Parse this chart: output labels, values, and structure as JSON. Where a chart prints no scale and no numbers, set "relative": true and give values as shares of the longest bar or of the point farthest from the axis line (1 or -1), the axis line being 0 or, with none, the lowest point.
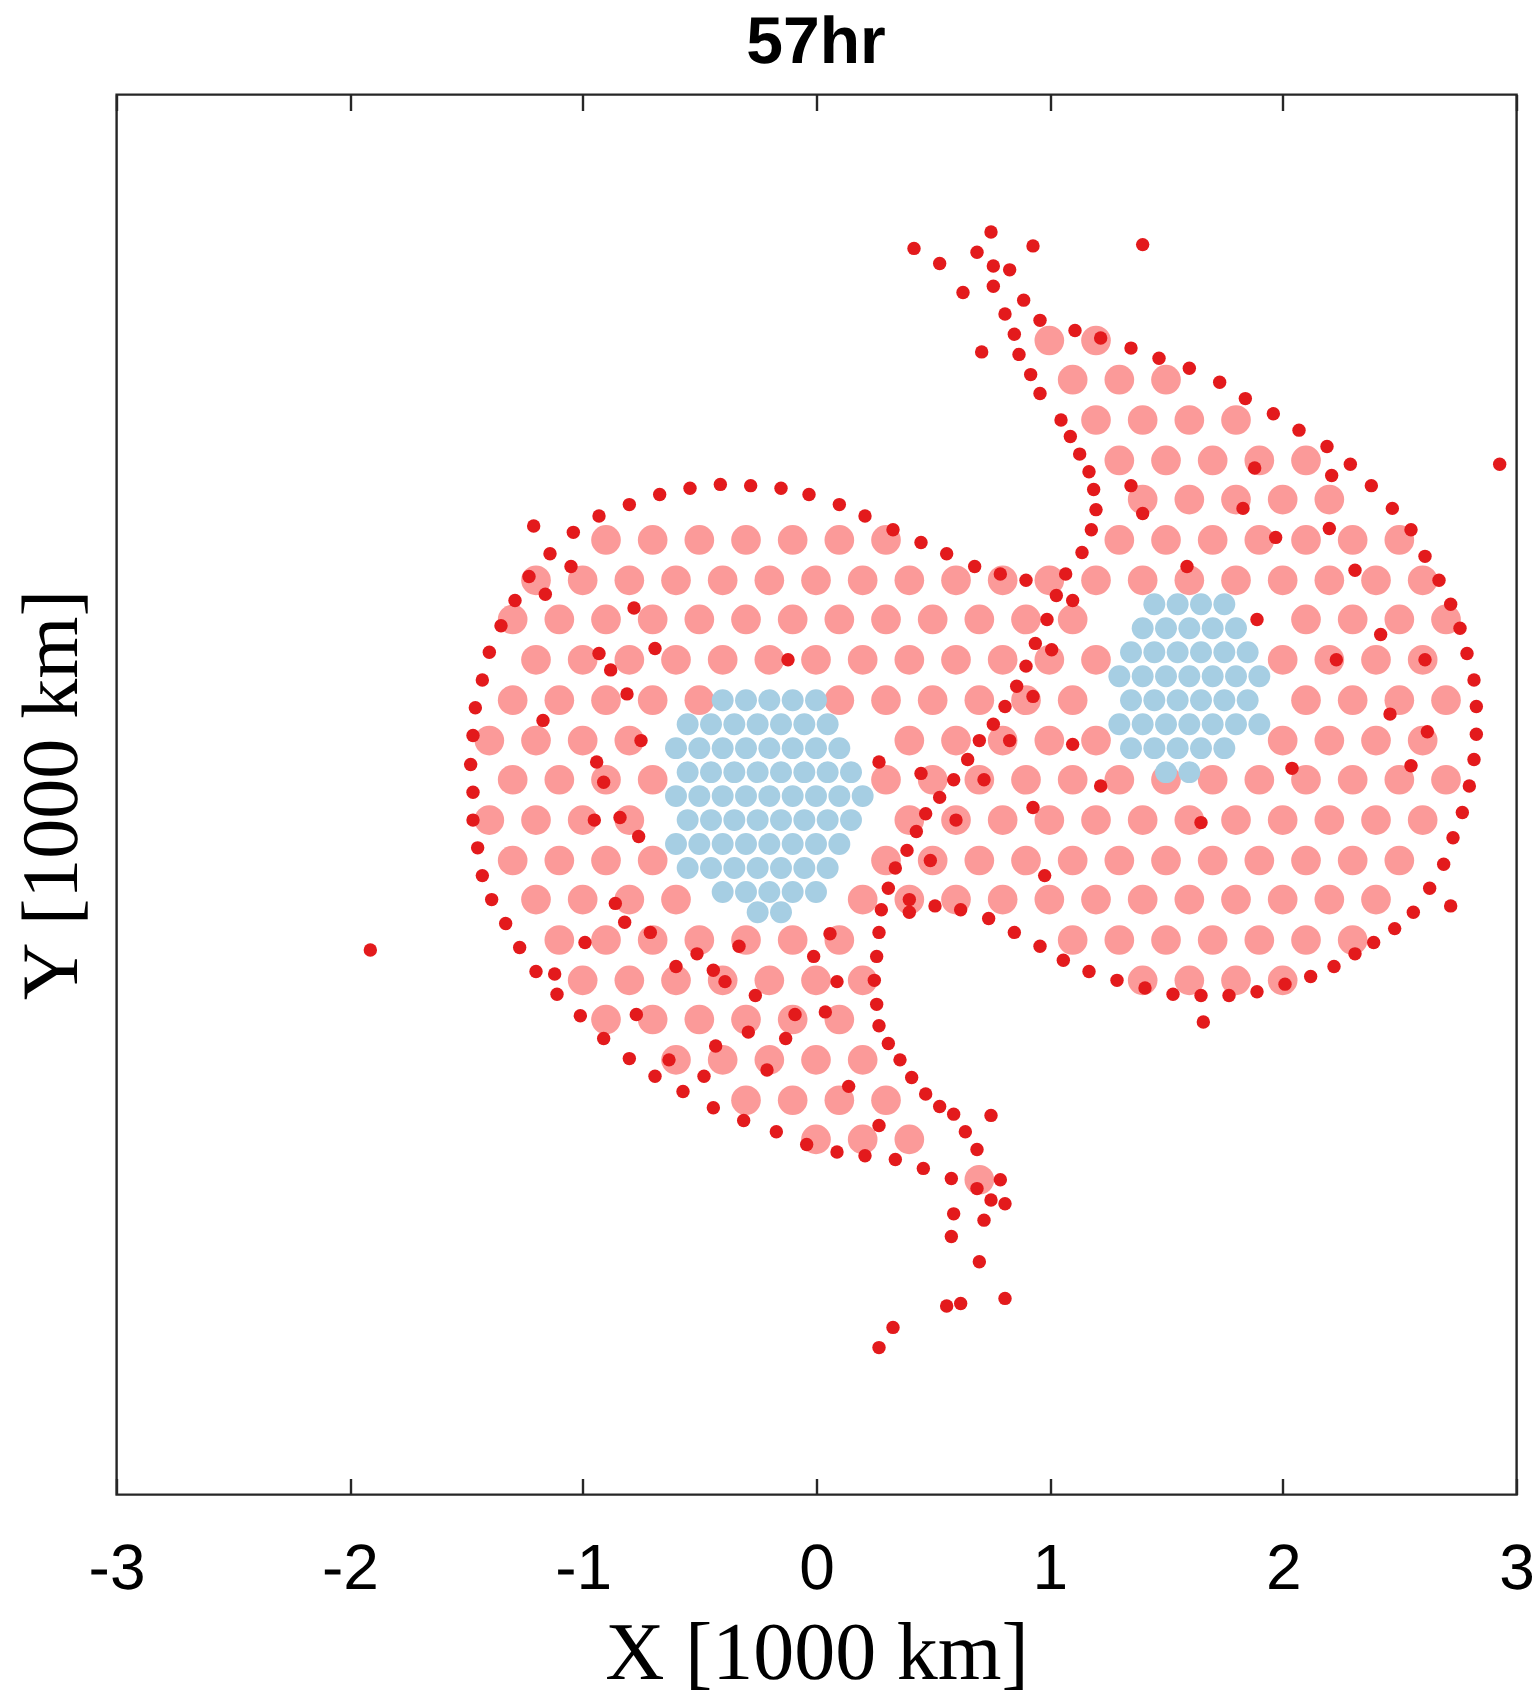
{
  "chart_data": {
    "type": "scatter",
    "title": "57hr",
    "xlabel": "X [1000 km]",
    "ylabel": "Y [1000 km]",
    "xlim": [
      -3,
      3
    ],
    "xticks": [
      -3,
      -2,
      -1,
      0,
      1,
      2,
      3
    ],
    "relative": true,
    "grid": false,
    "tick_labels": "x",
    "marker": "circle",
    "series": [
      {
        "color": "#fb9a99",
        "x": [
          1.0,
          1.2,
          1.1,
          1.3,
          1.5,
          1.2,
          1.4,
          1.6,
          1.8,
          1.3,
          1.5,
          1.7,
          1.9,
          2.1,
          1.4,
          1.6,
          1.8,
          2.0,
          2.2,
          -0.9,
          -0.7,
          -0.5,
          -0.3,
          -0.1,
          0.1,
          0.3,
          1.3,
          1.5,
          1.7,
          1.9,
          2.1,
          2.3,
          2.5,
          -1.2,
          -1.0,
          -0.8,
          -0.6,
          -0.4,
          -0.2,
          0.0,
          0.2,
          0.4,
          0.6,
          0.8,
          1.0,
          1.2,
          1.4,
          1.6,
          1.8,
          2.0,
          2.2,
          2.4,
          2.6,
          -1.3,
          -1.1,
          -0.9,
          -0.7,
          -0.5,
          -0.3,
          -0.1,
          0.1,
          0.3,
          0.5,
          0.7,
          0.9,
          1.1,
          2.1,
          2.3,
          2.5,
          2.7,
          -1.2,
          -1.0,
          -0.8,
          -0.6,
          -0.4,
          -0.2,
          0.0,
          0.2,
          0.4,
          0.6,
          0.8,
          1.0,
          1.2,
          2.0,
          2.2,
          2.4,
          2.6,
          -1.3,
          -1.1,
          -0.9,
          -0.7,
          -0.5,
          0.1,
          0.3,
          0.5,
          0.7,
          0.9,
          1.1,
          2.1,
          2.3,
          2.5,
          2.7,
          -1.4,
          -1.2,
          -1.0,
          -0.8,
          0.4,
          0.6,
          0.8,
          1.0,
          1.2,
          2.0,
          2.2,
          2.4,
          2.6,
          -1.3,
          -1.1,
          -0.9,
          -0.7,
          0.3,
          0.5,
          0.7,
          0.9,
          1.1,
          1.3,
          1.5,
          1.7,
          1.9,
          2.1,
          2.3,
          2.5,
          2.7,
          -1.4,
          -1.2,
          -1.0,
          -0.8,
          0.4,
          0.6,
          0.8,
          1.0,
          1.2,
          1.4,
          1.6,
          1.8,
          2.0,
          2.2,
          2.4,
          2.6,
          -1.3,
          -1.1,
          -0.9,
          -0.7,
          0.3,
          0.5,
          0.7,
          0.9,
          1.1,
          1.3,
          1.5,
          1.7,
          1.9,
          2.1,
          2.3,
          2.5,
          -1.2,
          -1.0,
          -0.8,
          -0.6,
          0.2,
          0.4,
          0.6,
          0.8,
          1.0,
          1.2,
          1.4,
          1.6,
          1.8,
          2.0,
          2.2,
          2.4,
          -1.1,
          -0.9,
          -0.7,
          -0.5,
          -0.3,
          -0.1,
          0.1,
          1.1,
          1.3,
          1.5,
          1.7,
          1.9,
          2.1,
          2.3,
          -1.0,
          -0.8,
          -0.6,
          -0.4,
          -0.2,
          0.0,
          0.2,
          1.4,
          1.6,
          1.8,
          2.0,
          -0.9,
          -0.7,
          -0.5,
          -0.3,
          -0.1,
          0.1,
          -0.6,
          -0.4,
          -0.2,
          0.0,
          0.2,
          -0.3,
          -0.1,
          0.1,
          0.3,
          0.0,
          0.2,
          0.4,
          0.7
        ],
        "values": [
          0.914,
          0.914,
          0.883,
          0.883,
          0.883,
          0.851,
          0.851,
          0.851,
          0.851,
          0.819,
          0.819,
          0.819,
          0.819,
          0.819,
          0.788,
          0.788,
          0.788,
          0.788,
          0.788,
          0.756,
          0.756,
          0.756,
          0.756,
          0.756,
          0.756,
          0.756,
          0.756,
          0.756,
          0.756,
          0.756,
          0.756,
          0.756,
          0.756,
          0.724,
          0.724,
          0.724,
          0.724,
          0.724,
          0.724,
          0.724,
          0.724,
          0.724,
          0.724,
          0.724,
          0.724,
          0.724,
          0.724,
          0.724,
          0.724,
          0.724,
          0.724,
          0.724,
          0.724,
          0.693,
          0.693,
          0.693,
          0.693,
          0.693,
          0.693,
          0.693,
          0.693,
          0.693,
          0.693,
          0.693,
          0.693,
          0.693,
          0.693,
          0.693,
          0.693,
          0.693,
          0.661,
          0.661,
          0.661,
          0.661,
          0.661,
          0.661,
          0.661,
          0.661,
          0.661,
          0.661,
          0.661,
          0.661,
          0.661,
          0.661,
          0.661,
          0.661,
          0.661,
          0.629,
          0.629,
          0.629,
          0.629,
          0.629,
          0.629,
          0.629,
          0.629,
          0.629,
          0.629,
          0.629,
          0.629,
          0.629,
          0.629,
          0.629,
          0.597,
          0.597,
          0.597,
          0.597,
          0.597,
          0.597,
          0.597,
          0.597,
          0.597,
          0.597,
          0.597,
          0.597,
          0.597,
          0.566,
          0.566,
          0.566,
          0.566,
          0.566,
          0.566,
          0.566,
          0.566,
          0.566,
          0.566,
          0.566,
          0.566,
          0.566,
          0.566,
          0.566,
          0.566,
          0.566,
          0.534,
          0.534,
          0.534,
          0.534,
          0.534,
          0.534,
          0.534,
          0.534,
          0.534,
          0.534,
          0.534,
          0.534,
          0.534,
          0.534,
          0.534,
          0.534,
          0.502,
          0.502,
          0.502,
          0.502,
          0.502,
          0.502,
          0.502,
          0.502,
          0.502,
          0.502,
          0.502,
          0.502,
          0.502,
          0.502,
          0.502,
          0.502,
          0.471,
          0.471,
          0.471,
          0.471,
          0.471,
          0.471,
          0.471,
          0.471,
          0.471,
          0.471,
          0.471,
          0.471,
          0.471,
          0.471,
          0.471,
          0.471,
          0.439,
          0.439,
          0.439,
          0.439,
          0.439,
          0.439,
          0.439,
          0.439,
          0.439,
          0.439,
          0.439,
          0.439,
          0.439,
          0.439,
          0.407,
          0.407,
          0.407,
          0.407,
          0.407,
          0.407,
          0.407,
          0.407,
          0.407,
          0.407,
          0.407,
          0.376,
          0.376,
          0.376,
          0.376,
          0.376,
          0.376,
          0.344,
          0.344,
          0.344,
          0.344,
          0.344,
          0.312,
          0.312,
          0.312,
          0.312,
          0.281,
          0.281,
          0.281,
          0.249
        ]
      },
      {
        "color": "#a6cee3",
        "x": [
          -0.4,
          -0.3,
          -0.2,
          -0.1,
          0.0,
          -0.55,
          -0.45,
          -0.35,
          -0.25,
          -0.15,
          -0.05,
          0.05,
          -0.6,
          -0.5,
          -0.4,
          -0.3,
          -0.2,
          -0.1,
          0.0,
          0.1,
          -0.55,
          -0.45,
          -0.35,
          -0.25,
          -0.15,
          -0.05,
          0.05,
          0.15,
          -0.6,
          -0.5,
          -0.4,
          -0.3,
          -0.2,
          -0.1,
          0.0,
          0.1,
          0.2,
          -0.55,
          -0.45,
          -0.35,
          -0.25,
          -0.15,
          -0.05,
          0.05,
          0.15,
          -0.6,
          -0.5,
          -0.4,
          -0.3,
          -0.2,
          -0.1,
          0.0,
          0.1,
          -0.55,
          -0.45,
          -0.35,
          -0.25,
          -0.15,
          -0.05,
          0.05,
          -0.4,
          -0.3,
          -0.2,
          -0.1,
          0.0,
          -0.25,
          -0.15,
          1.45,
          1.55,
          1.65,
          1.75,
          1.4,
          1.5,
          1.6,
          1.7,
          1.8,
          1.35,
          1.45,
          1.55,
          1.65,
          1.75,
          1.85,
          1.3,
          1.4,
          1.5,
          1.6,
          1.7,
          1.8,
          1.9,
          1.35,
          1.45,
          1.55,
          1.65,
          1.75,
          1.85,
          1.3,
          1.4,
          1.5,
          1.6,
          1.7,
          1.8,
          1.9,
          1.35,
          1.45,
          1.55,
          1.65,
          1.75,
          1.5,
          1.6
        ],
        "values": [
          0.629,
          0.629,
          0.629,
          0.629,
          0.629,
          0.61,
          0.61,
          0.61,
          0.61,
          0.61,
          0.61,
          0.61,
          0.591,
          0.591,
          0.591,
          0.591,
          0.591,
          0.591,
          0.591,
          0.591,
          0.572,
          0.572,
          0.572,
          0.572,
          0.572,
          0.572,
          0.572,
          0.572,
          0.553,
          0.553,
          0.553,
          0.553,
          0.553,
          0.553,
          0.553,
          0.553,
          0.553,
          0.534,
          0.534,
          0.534,
          0.534,
          0.534,
          0.534,
          0.534,
          0.534,
          0.515,
          0.515,
          0.515,
          0.515,
          0.515,
          0.515,
          0.515,
          0.515,
          0.496,
          0.496,
          0.496,
          0.496,
          0.496,
          0.496,
          0.496,
          0.477,
          0.477,
          0.477,
          0.477,
          0.477,
          0.461,
          0.461,
          0.705,
          0.705,
          0.705,
          0.705,
          0.686,
          0.686,
          0.686,
          0.686,
          0.686,
          0.667,
          0.667,
          0.667,
          0.667,
          0.667,
          0.667,
          0.648,
          0.648,
          0.648,
          0.648,
          0.648,
          0.648,
          0.648,
          0.629,
          0.629,
          0.629,
          0.629,
          0.629,
          0.629,
          0.61,
          0.61,
          0.61,
          0.61,
          0.61,
          0.61,
          0.61,
          0.591,
          0.591,
          0.591,
          0.591,
          0.591,
          0.572,
          0.572
        ]
      },
      {
        "color": "#e31a1c",
        "x": [
          0.9,
          0.79,
          0.68,
          0.56,
          0.45,
          0.33,
          0.21,
          0.1,
          -0.03,
          -0.15,
          -0.28,
          -0.41,
          -0.54,
          -0.67,
          -0.8,
          -0.93,
          -1.04,
          -1.14,
          -1.23,
          -1.29,
          -1.35,
          -1.4,
          -1.43,
          -1.46,
          -1.47,
          -1.48,
          -1.47,
          -1.47,
          -1.45,
          -1.43,
          -1.39,
          -1.33,
          -1.27,
          -1.2,
          -1.11,
          -1.01,
          -0.91,
          -0.8,
          -0.69,
          -0.57,
          -0.44,
          -0.31,
          -0.17,
          -0.04,
          0.09,
          0.21,
          0.34,
          0.46,
          0.58,
          0.69,
          0.75,
          0.79,
          0.81,
          0.72,
          0.59,
          0.58,
          0.7,
          0.81,
          0.62,
          0.56,
          0.33,
          0.27,
          0.75,
          -1.91,
          0.75,
          0.69,
          0.76,
          0.76,
          0.81,
          0.85,
          0.87,
          0.92,
          0.96,
          1.05,
          1.09,
          1.13,
          1.17,
          1.19,
          1.2,
          1.18,
          1.14,
          1.07,
          1.03,
          0.99,
          0.94,
          0.9,
          0.86,
          0.81,
          0.76,
          0.7,
          0.65,
          0.59,
          0.53,
          0.47,
          0.43,
          0.39,
          0.34,
          0.31,
          0.28,
          0.27,
          0.26,
          0.25,
          0.26,
          0.27,
          0.31,
          0.36,
          0.41,
          0.47,
          0.53,
          0.59,
          0.64,
          0.69,
          1.1,
          1.01,
          0.93,
          0.83,
          0.72,
          0.6,
          0.49,
          0.4,
          0.83,
          0.89,
          0.96,
          1.11,
          1.22,
          1.35,
          1.47,
          1.6,
          1.73,
          1.84,
          1.96,
          2.07,
          2.19,
          2.29,
          2.38,
          2.47,
          2.55,
          2.61,
          2.67,
          2.72,
          2.76,
          2.79,
          2.82,
          2.83,
          2.83,
          2.82,
          2.8,
          2.77,
          2.73,
          2.69,
          2.63,
          2.56,
          2.48,
          2.39,
          2.31,
          2.22,
          2.12,
          2.01,
          1.89,
          1.77,
          1.65,
          1.53,
          1.41,
          1.29,
          1.17,
          1.06,
          0.96,
          0.85,
          0.74,
          0.62,
          0.51,
          0.4,
          2.93,
          1.4,
          0.42,
          0.53,
          0.93,
          0.63,
          0.71,
          1.66,
          2.72,
          -1.21,
          -0.69,
          -0.93,
          -0.88,
          -1.17,
          -0.81,
          -0.75,
          -0.94,
          -0.91,
          -0.95,
          -0.84,
          -0.76,
          -0.12,
          0.27,
          0.45,
          -0.86,
          -0.71,
          -0.51,
          -0.44,
          -0.33,
          -1.12,
          -0.78,
          -1.05,
          -1.16,
          1.35,
          1.4,
          1.59,
          1.83,
          1.88,
          1.97,
          2.2,
          2.21,
          2.31,
          1.89,
          2.23,
          2.46,
          2.62,
          2.42,
          2.61,
          2.04,
          2.55,
          1.1,
          1.22,
          0.93,
          1.65,
          0.98,
          -0.99,
          -0.82,
          -0.6,
          -0.39,
          -0.26,
          -0.09,
          0.04,
          0.09,
          -0.77,
          -0.43,
          -0.29,
          -0.13,
          -0.21,
          0.14,
          -0.48,
          -0.63,
          -0.01,
          0.06,
          0.27
        ],
        "values": [
          0.724,
          0.729,
          0.735,
          0.745,
          0.754,
          0.764,
          0.775,
          0.784,
          0.792,
          0.797,
          0.799,
          0.8,
          0.797,
          0.792,
          0.784,
          0.775,
          0.762,
          0.745,
          0.727,
          0.708,
          0.688,
          0.667,
          0.645,
          0.623,
          0.601,
          0.578,
          0.556,
          0.534,
          0.512,
          0.49,
          0.471,
          0.452,
          0.433,
          0.414,
          0.396,
          0.379,
          0.361,
          0.345,
          0.331,
          0.319,
          0.306,
          0.296,
          0.287,
          0.277,
          0.271,
          0.268,
          0.265,
          0.258,
          0.25,
          0.242,
          0.233,
          0.249,
          0.23,
          0.217,
          0.222,
          0.204,
          0.184,
          0.155,
          0.151,
          0.149,
          0.132,
          0.116,
          0.3,
          0.431,
          1.0,
          0.984,
          0.973,
          0.957,
          0.935,
          0.919,
          0.903,
          0.887,
          0.872,
          0.851,
          0.838,
          0.824,
          0.81,
          0.796,
          0.78,
          0.764,
          0.746,
          0.729,
          0.712,
          0.693,
          0.674,
          0.656,
          0.64,
          0.624,
          0.61,
          0.597,
          0.582,
          0.566,
          0.552,
          0.539,
          0.525,
          0.51,
          0.496,
          0.48,
          0.463,
          0.445,
          0.426,
          0.407,
          0.388,
          0.371,
          0.357,
          0.344,
          0.33,
          0.317,
          0.307,
          0.301,
          0.287,
          0.273,
          0.708,
          0.669,
          0.632,
          0.597,
          0.566,
          0.534,
          0.502,
          0.471,
          0.97,
          0.946,
          0.93,
          0.922,
          0.916,
          0.908,
          0.9,
          0.892,
          0.881,
          0.868,
          0.856,
          0.843,
          0.83,
          0.816,
          0.799,
          0.781,
          0.764,
          0.743,
          0.724,
          0.705,
          0.686,
          0.666,
          0.645,
          0.624,
          0.602,
          0.582,
          0.561,
          0.54,
          0.52,
          0.499,
          0.48,
          0.461,
          0.448,
          0.437,
          0.428,
          0.418,
          0.41,
          0.404,
          0.398,
          0.395,
          0.395,
          0.396,
          0.401,
          0.407,
          0.414,
          0.423,
          0.434,
          0.445,
          0.456,
          0.463,
          0.466,
          0.461,
          0.816,
          0.99,
          0.987,
          0.975,
          0.989,
          0.952,
          0.905,
          0.374,
          0.466,
          0.767,
          0.67,
          0.666,
          0.653,
          0.613,
          0.634,
          0.597,
          0.58,
          0.564,
          0.534,
          0.536,
          0.521,
          0.661,
          0.58,
          0.571,
          0.468,
          0.445,
          0.428,
          0.415,
          0.434,
          0.412,
          0.702,
          0.735,
          0.713,
          0.799,
          0.777,
          0.735,
          0.781,
          0.813,
          0.758,
          0.765,
          0.807,
          0.732,
          0.693,
          0.661,
          0.618,
          0.604,
          0.681,
          0.661,
          0.575,
          0.577,
          0.594,
          0.561,
          0.544,
          0.532,
          0.49,
          0.437,
          0.453,
          0.418,
          0.406,
          0.395,
          0.38,
          0.382,
          0.406,
          0.38,
          0.355,
          0.366,
          0.361,
          0.336,
          0.323,
          0.331,
          0.344,
          0.426,
          0.444,
          0.292
        ]
      }
    ]
  }
}
